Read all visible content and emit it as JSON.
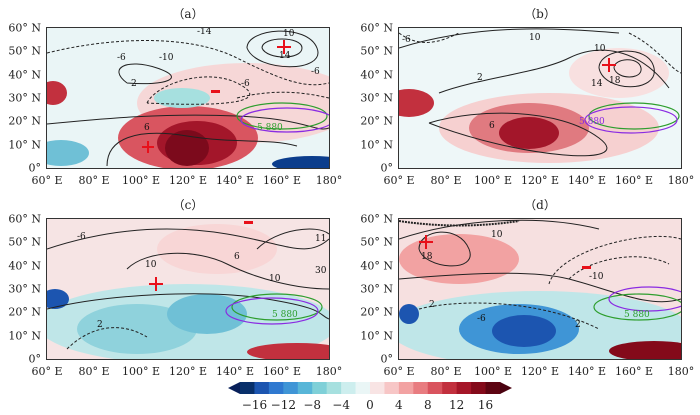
{
  "panels": [
    {
      "id": "a",
      "label": "（a）",
      "contours": [
        "-6",
        "-10",
        "-14",
        "2",
        "6",
        "10",
        "14",
        "-6",
        "-6",
        "2",
        "-6"
      ],
      "sh_label": "5 880"
    },
    {
      "id": "b",
      "label": "（b）",
      "contours": [
        "-6",
        "10",
        "2",
        "10",
        "14",
        "18",
        "-6",
        "6",
        "-6"
      ],
      "sh_label": "5 880"
    },
    {
      "id": "c",
      "label": "（c）",
      "contours": [
        "-6",
        "10",
        "6",
        "10",
        "30",
        "11",
        "2",
        "-2"
      ],
      "sh_label": "5 880"
    },
    {
      "id": "d",
      "label": "（d）",
      "contours": [
        "10",
        "18",
        "2",
        "-6",
        "-10",
        "2",
        "-6",
        "-2"
      ],
      "sh_label": "5 880"
    }
  ],
  "axes": {
    "x_ticks": [
      "60° E",
      "80° E",
      "100° E",
      "120° E",
      "140° E",
      "160° E",
      "180°"
    ],
    "y_ticks": [
      "60° N",
      "50° N",
      "40° N",
      "30° N",
      "20° N",
      "10° N",
      "0°"
    ]
  },
  "colorbar": {
    "ticks": [
      "−16",
      "−12",
      "−8",
      "−4",
      "0",
      "4",
      "8",
      "12",
      "16"
    ],
    "colors": [
      "#08306b",
      "#1c55b0",
      "#2f79d0",
      "#3f95d6",
      "#58b6d8",
      "#7fd0d8",
      "#a6e0df",
      "#cdeeee",
      "#eaf6f6",
      "#f8e4e4",
      "#f7c6c6",
      "#f2a2a2",
      "#e87c80",
      "#d9545e",
      "#c2303e",
      "#a51628",
      "#840a1a",
      "#5e0512"
    ],
    "low_color": "#08205a",
    "high_color": "#4a0210"
  },
  "legend_colors": {
    "green": "#2e9e2e",
    "purple": "#8a2be2",
    "marker": "#e8101a"
  }
}
